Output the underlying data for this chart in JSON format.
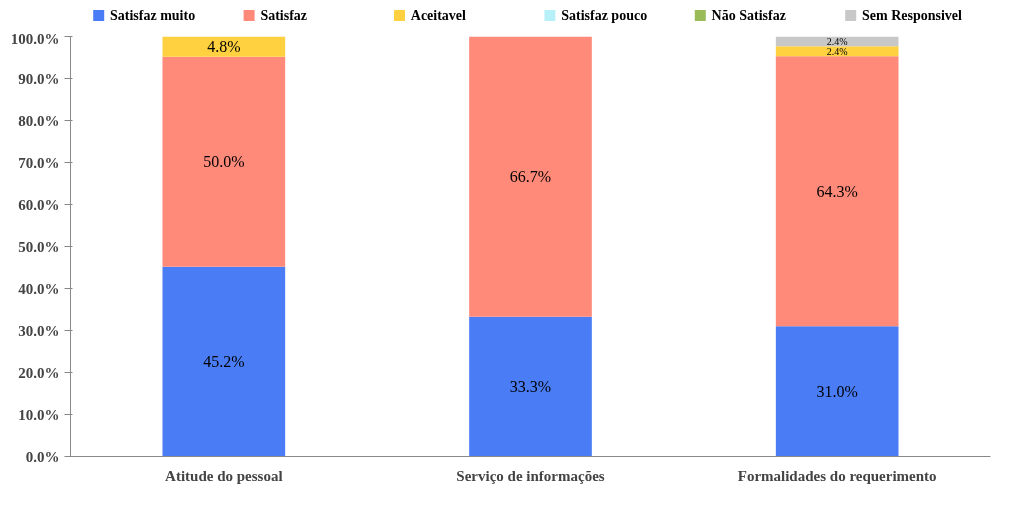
{
  "chart_data": {
    "type": "bar",
    "stacked": true,
    "categories": [
      "Atitude do pessoal",
      "Serviço de informações",
      "Formalidades do requerimento"
    ],
    "series": [
      {
        "name": "Satisfaz muito",
        "color": "#4a7cf5",
        "values": [
          45.2,
          33.3,
          31.0
        ],
        "value_labels": [
          "45.2%",
          "33.3%",
          "31.0%"
        ]
      },
      {
        "name": "Satisfaz",
        "color": "#ff8a7a",
        "values": [
          50.0,
          66.7,
          64.3
        ],
        "value_labels": [
          "50.0%",
          "66.7%",
          "64.3%"
        ]
      },
      {
        "name": "Aceitavel",
        "color": "#ffd040",
        "values": [
          4.8,
          0,
          2.4
        ],
        "value_labels": [
          "4.8%",
          null,
          "2.4%"
        ]
      },
      {
        "name": "Satisfaz pouco",
        "color": "#b8f0fa",
        "values": [
          0,
          0,
          0
        ],
        "value_labels": [
          null,
          null,
          null
        ]
      },
      {
        "name": "Não Satisfaz",
        "color": "#9bbb59",
        "values": [
          0,
          0,
          0
        ],
        "value_labels": [
          null,
          null,
          null
        ]
      },
      {
        "name": "Sem Responsivel",
        "color": "#c8c8c8",
        "values": [
          0,
          0,
          2.4
        ],
        "value_labels": [
          null,
          null,
          "2.4%"
        ]
      }
    ],
    "ylim": [
      0,
      100
    ],
    "yticks": [
      {
        "value": 0,
        "label": "0.0%"
      },
      {
        "value": 10,
        "label": "10.0%"
      },
      {
        "value": 20,
        "label": "20.0%"
      },
      {
        "value": 30,
        "label": "30.0%"
      },
      {
        "value": 40,
        "label": "40.0%"
      },
      {
        "value": 50,
        "label": "50.0%"
      },
      {
        "value": 60,
        "label": "60.0%"
      },
      {
        "value": 70,
        "label": "70.0%"
      },
      {
        "value": 80,
        "label": "80.0%"
      },
      {
        "value": 90,
        "label": "90.0%"
      },
      {
        "value": 100,
        "label": "100.0%"
      }
    ],
    "legend": "top"
  }
}
